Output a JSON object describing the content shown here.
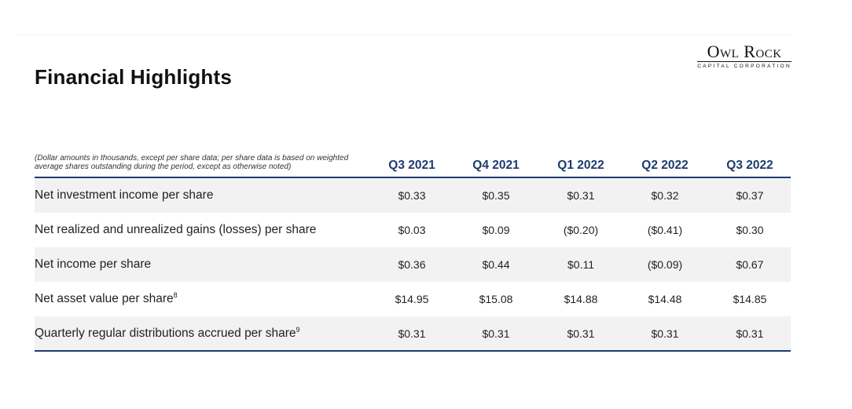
{
  "header": {
    "title": "Financial Highlights",
    "logo_main": "Owl Rock",
    "logo_sub": "CAPITAL CORPORATION"
  },
  "table": {
    "note_line1": "(Dollar amounts in thousands, except per share data; per share data is based on weighted",
    "note_line2": "average shares outstanding during the period, except as otherwise noted)",
    "columns": [
      "Q3 2021",
      "Q4 2021",
      "Q1 2022",
      "Q2 2022",
      "Q3 2022"
    ],
    "rows": [
      {
        "label": "Net investment income per share",
        "footnote": "",
        "values": [
          "$0.33",
          "$0.35",
          "$0.31",
          "$0.32",
          "$0.37"
        ]
      },
      {
        "label": "Net realized and unrealized gains (losses) per share",
        "footnote": "",
        "values": [
          "$0.03",
          "$0.09",
          "($0.20)",
          "($0.41)",
          "$0.30"
        ]
      },
      {
        "label": "Net income per share",
        "footnote": "",
        "values": [
          "$0.36",
          "$0.44",
          "$0.11",
          "($0.09)",
          "$0.67"
        ]
      },
      {
        "label": "Net asset value per share",
        "footnote": "8",
        "values": [
          "$14.95",
          "$15.08",
          "$14.88",
          "$14.48",
          "$14.85"
        ]
      },
      {
        "label": "Quarterly regular distributions accrued per share",
        "footnote": "9",
        "values": [
          "$0.31",
          "$0.31",
          "$0.31",
          "$0.31",
          "$0.31"
        ]
      }
    ]
  },
  "colors": {
    "accent": "#1d3c6e",
    "row_shade": "#f2f2f2"
  }
}
